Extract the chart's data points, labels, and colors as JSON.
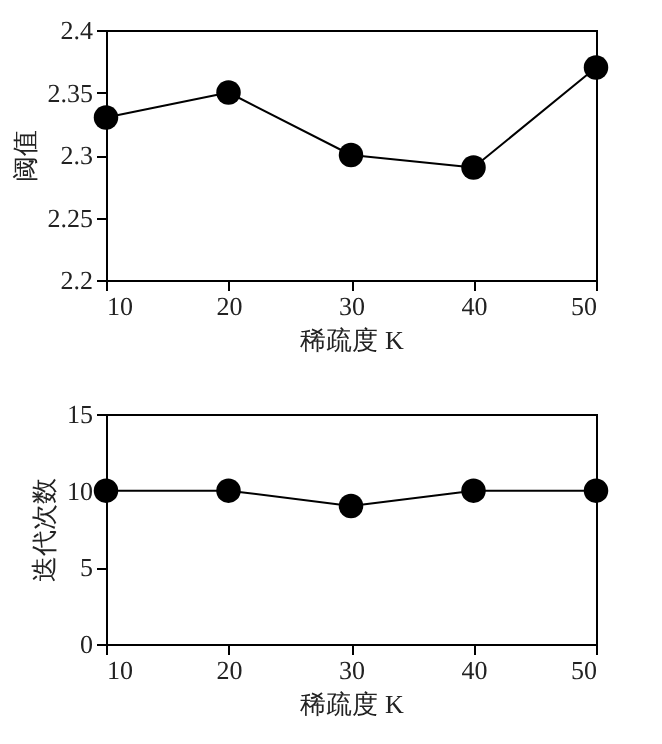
{
  "chart_data": [
    {
      "type": "line",
      "xlabel": "稀疏度 K",
      "ylabel": "阈值",
      "x": [
        10,
        20,
        30,
        40,
        50
      ],
      "series": [
        {
          "color": "#000000",
          "values": [
            2.33,
            2.35,
            2.3,
            2.29,
            2.37
          ]
        }
      ],
      "xlim": [
        10,
        50
      ],
      "xticks": [
        10,
        20,
        30,
        40,
        50
      ],
      "ylim": [
        2.2,
        2.4
      ],
      "yticks": [
        2.2,
        2.25,
        2.3,
        2.35,
        2.4
      ],
      "marker": "circle",
      "line_style": "solid",
      "grid": false
    },
    {
      "type": "line",
      "xlabel": "稀疏度 K",
      "ylabel": "迭代次数",
      "x": [
        10,
        20,
        30,
        40,
        50
      ],
      "series": [
        {
          "color": "#000000",
          "values": [
            10,
            10,
            9,
            10,
            10
          ]
        }
      ],
      "xlim": [
        10,
        50
      ],
      "xticks": [
        10,
        20,
        30,
        40,
        50
      ],
      "ylim": [
        0,
        15
      ],
      "yticks": [
        0,
        5,
        10,
        15
      ],
      "marker": "circle",
      "line_style": "solid",
      "grid": false
    }
  ]
}
